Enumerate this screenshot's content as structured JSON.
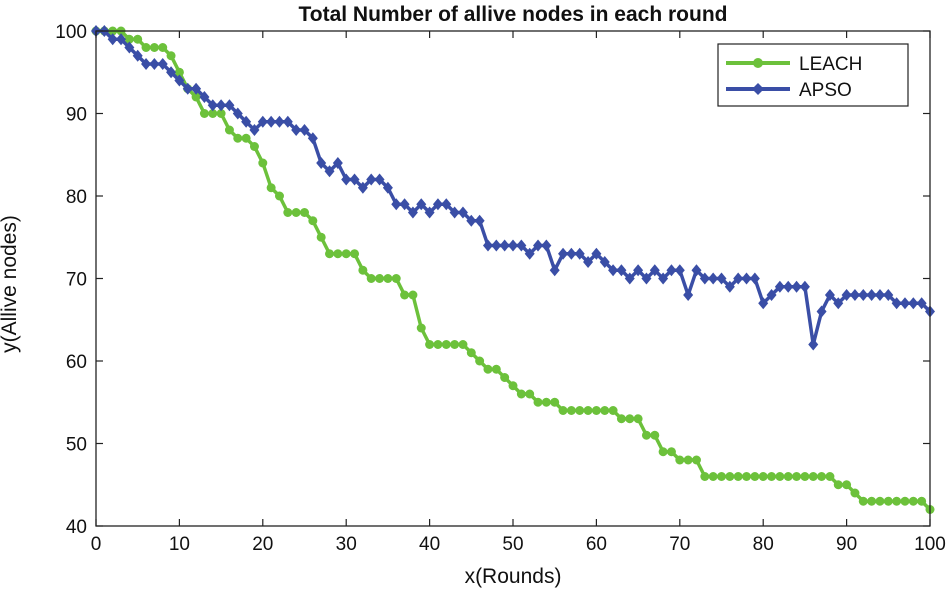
{
  "chart_data": {
    "type": "line",
    "title": "Total Number of allive nodes in each round",
    "xlabel": "x(Rounds)",
    "ylabel": "y(Allive nodes)",
    "xlim": [
      0,
      100
    ],
    "ylim": [
      40,
      100
    ],
    "xticks": [
      0,
      10,
      20,
      30,
      40,
      50,
      60,
      70,
      80,
      90,
      100
    ],
    "yticks": [
      40,
      50,
      60,
      70,
      80,
      90,
      100
    ],
    "grid": false,
    "legend_position": "top-right",
    "series": [
      {
        "name": "LEACH",
        "color": "#6cc13b",
        "marker": "circle",
        "x": [
          0,
          1,
          2,
          3,
          4,
          5,
          6,
          7,
          8,
          9,
          10,
          11,
          12,
          13,
          14,
          15,
          16,
          17,
          18,
          19,
          20,
          21,
          22,
          23,
          24,
          25,
          26,
          27,
          28,
          29,
          30,
          31,
          32,
          33,
          34,
          35,
          36,
          37,
          38,
          39,
          40,
          41,
          42,
          43,
          44,
          45,
          46,
          47,
          48,
          49,
          50,
          51,
          52,
          53,
          54,
          55,
          56,
          57,
          58,
          59,
          60,
          61,
          62,
          63,
          64,
          65,
          66,
          67,
          68,
          69,
          70,
          71,
          72,
          73,
          74,
          75,
          76,
          77,
          78,
          79,
          80,
          81,
          82,
          83,
          84,
          85,
          86,
          87,
          88,
          89,
          90,
          91,
          92,
          93,
          94,
          95,
          96,
          97,
          98,
          99,
          100
        ],
        "y": [
          100,
          100,
          100,
          100,
          99,
          99,
          98,
          98,
          98,
          97,
          95,
          93,
          92,
          90,
          90,
          90,
          88,
          87,
          87,
          86,
          84,
          81,
          80,
          78,
          78,
          78,
          77,
          75,
          73,
          73,
          73,
          73,
          71,
          70,
          70,
          70,
          70,
          68,
          68,
          64,
          62,
          62,
          62,
          62,
          62,
          61,
          60,
          59,
          59,
          58,
          57,
          56,
          56,
          55,
          55,
          55,
          54,
          54,
          54,
          54,
          54,
          54,
          54,
          53,
          53,
          53,
          51,
          51,
          49,
          49,
          48,
          48,
          48,
          46,
          46,
          46,
          46,
          46,
          46,
          46,
          46,
          46,
          46,
          46,
          46,
          46,
          46,
          46,
          46,
          45,
          45,
          44,
          43,
          43,
          43,
          43,
          43,
          43,
          43,
          43,
          42
        ]
      },
      {
        "name": "APSO",
        "color": "#3a4ea6",
        "marker": "diamond",
        "x": [
          0,
          1,
          2,
          3,
          4,
          5,
          6,
          7,
          8,
          9,
          10,
          11,
          12,
          13,
          14,
          15,
          16,
          17,
          18,
          19,
          20,
          21,
          22,
          23,
          24,
          25,
          26,
          27,
          28,
          29,
          30,
          31,
          32,
          33,
          34,
          35,
          36,
          37,
          38,
          39,
          40,
          41,
          42,
          43,
          44,
          45,
          46,
          47,
          48,
          49,
          50,
          51,
          52,
          53,
          54,
          55,
          56,
          57,
          58,
          59,
          60,
          61,
          62,
          63,
          64,
          65,
          66,
          67,
          68,
          69,
          70,
          71,
          72,
          73,
          74,
          75,
          76,
          77,
          78,
          79,
          80,
          81,
          82,
          83,
          84,
          85,
          86,
          87,
          88,
          89,
          90,
          91,
          92,
          93,
          94,
          95,
          96,
          97,
          98,
          99,
          100
        ],
        "y": [
          100,
          100,
          99,
          99,
          98,
          97,
          96,
          96,
          96,
          95,
          94,
          93,
          93,
          92,
          91,
          91,
          91,
          90,
          89,
          88,
          89,
          89,
          89,
          89,
          88,
          88,
          87,
          84,
          83,
          84,
          82,
          82,
          81,
          82,
          82,
          81,
          79,
          79,
          78,
          79,
          78,
          79,
          79,
          78,
          78,
          77,
          77,
          74,
          74,
          74,
          74,
          74,
          73,
          74,
          74,
          71,
          73,
          73,
          73,
          72,
          73,
          72,
          71,
          71,
          70,
          71,
          70,
          71,
          70,
          71,
          71,
          68,
          71,
          70,
          70,
          70,
          69,
          70,
          70,
          70,
          67,
          68,
          69,
          69,
          69,
          69,
          62,
          66,
          68,
          67,
          68,
          68,
          68,
          68,
          68,
          68,
          67,
          67,
          67,
          67,
          66
        ]
      }
    ]
  }
}
